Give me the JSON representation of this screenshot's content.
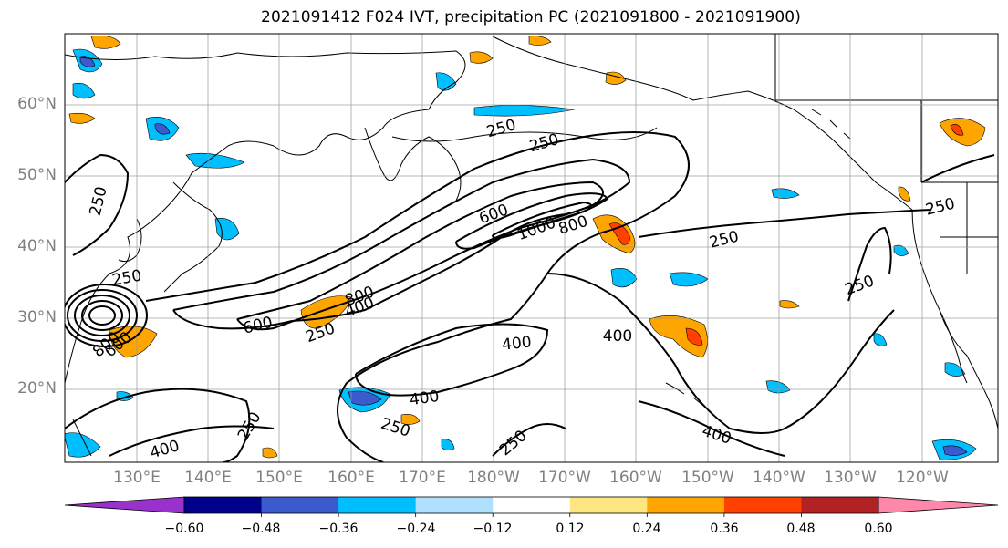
{
  "title": "2021091412 F024 IVT, precipitation PC (2021091800 - 2021091900)",
  "map": {
    "lat_labels": [
      "60°N",
      "50°N",
      "40°N",
      "30°N",
      "20°N"
    ],
    "lon_labels": [
      "130°E",
      "140°E",
      "150°E",
      "160°E",
      "170°E",
      "180°W",
      "170°W",
      "160°W",
      "150°W",
      "140°W",
      "130°W",
      "120°W"
    ],
    "contour_levels": [
      "250",
      "400",
      "600",
      "800",
      "1000"
    ],
    "contour_labels": [
      {
        "text": "250"
      },
      {
        "text": "250"
      },
      {
        "text": "600"
      },
      {
        "text": "1000"
      },
      {
        "text": "800"
      },
      {
        "text": "250"
      },
      {
        "text": "250"
      },
      {
        "text": "250"
      },
      {
        "text": "600"
      },
      {
        "text": "800"
      },
      {
        "text": "400"
      },
      {
        "text": "250"
      },
      {
        "text": "400"
      },
      {
        "text": "400"
      },
      {
        "text": "400"
      },
      {
        "text": "250"
      },
      {
        "text": "250"
      },
      {
        "text": "400"
      },
      {
        "text": "400"
      },
      {
        "text": "250"
      },
      {
        "text": "250"
      },
      {
        "text": "250"
      },
      {
        "text": "800"
      },
      {
        "text": "600"
      }
    ]
  },
  "colorbar": {
    "ticks": [
      "−0.60",
      "−0.48",
      "−0.36",
      "−0.24",
      "−0.12",
      "0.12",
      "0.24",
      "0.36",
      "0.48",
      "0.60"
    ],
    "colors": [
      "#9932cc",
      "#00008b",
      "#3a5acd",
      "#00bfff",
      "#b0e0ff",
      "#ffffff",
      "#ffe680",
      "#ffa500",
      "#ff4000",
      "#b22222",
      "#ff88aa"
    ],
    "extend": "both"
  }
}
